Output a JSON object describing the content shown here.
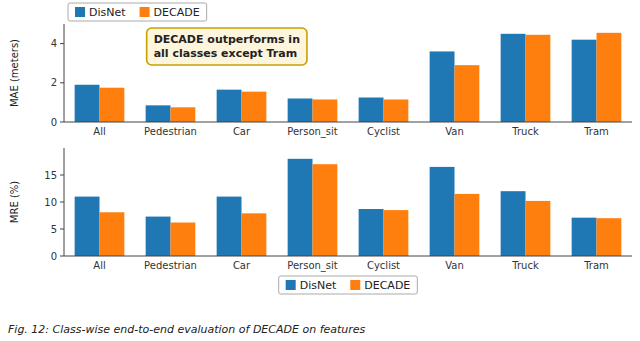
{
  "caption": "Fig. 12: Class-wise end-to-end evaluation of DECADE on features",
  "chart_data": [
    {
      "type": "bar",
      "y_label": "MAE (meters)",
      "categories": [
        "All",
        "Pedestrian",
        "Car",
        "Person_sit",
        "Cyclist",
        "Van",
        "Truck",
        "Tram"
      ],
      "series": [
        {
          "name": "DisNet",
          "color": "#1f77b4",
          "values": [
            1.9,
            0.85,
            1.65,
            1.2,
            1.25,
            3.6,
            4.5,
            4.2
          ]
        },
        {
          "name": "DECADE",
          "color": "#ff7f0e",
          "values": [
            1.75,
            0.75,
            1.55,
            1.15,
            1.15,
            2.9,
            4.45,
            4.55
          ]
        }
      ],
      "ylim": [
        0,
        5.0
      ],
      "yticks": [
        0,
        2,
        4
      ],
      "grid": false,
      "legend": "upper left",
      "annotations": [
        "DECADE outperforms in\nall classes except Tram"
      ]
    },
    {
      "type": "bar",
      "y_label": "MRE (%)",
      "categories": [
        "All",
        "Pedestrian",
        "Car",
        "Person_sit",
        "Cyclist",
        "Van",
        "Truck",
        "Tram"
      ],
      "series": [
        {
          "name": "DisNet",
          "color": "#1f77b4",
          "values": [
            11.0,
            7.3,
            11.0,
            18.0,
            8.7,
            16.5,
            12.0,
            7.1
          ]
        },
        {
          "name": "DECADE",
          "color": "#ff7f0e",
          "values": [
            8.1,
            6.2,
            7.9,
            17.0,
            8.5,
            11.5,
            10.2,
            7.0
          ]
        }
      ],
      "ylim": [
        0,
        20
      ],
      "yticks": [
        0,
        5,
        10,
        15
      ],
      "grid": false,
      "legend": "lower center"
    }
  ]
}
